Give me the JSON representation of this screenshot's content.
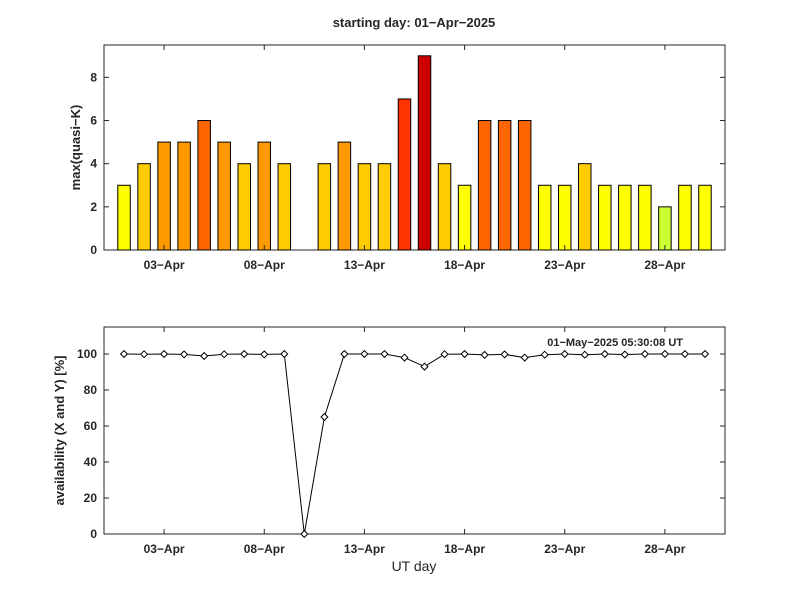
{
  "title": "starting day: 01−Apr−2025",
  "annotation": "01−May−2025 05:30:08 UT",
  "chart_data": [
    {
      "type": "bar",
      "title": "starting day: 01−Apr−2025",
      "ylabel": "max(quasi−K)",
      "xlabel": "",
      "days": [
        1,
        2,
        3,
        4,
        5,
        6,
        7,
        8,
        9,
        10,
        11,
        12,
        13,
        14,
        15,
        16,
        17,
        18,
        19,
        20,
        21,
        22,
        23,
        24,
        25,
        26,
        27,
        28,
        29,
        30
      ],
      "values": [
        3,
        4,
        5,
        5,
        6,
        5,
        4,
        5,
        4,
        null,
        4,
        5,
        4,
        4,
        7,
        9,
        4,
        3,
        6,
        6,
        6,
        3,
        3,
        4,
        3,
        3,
        3,
        2,
        3,
        3
      ],
      "xlim": [
        0,
        31
      ],
      "ylim": [
        0,
        9.5
      ],
      "yticks": [
        0,
        2,
        4,
        6,
        8
      ],
      "yticklabels": [
        "0",
        "2",
        "4",
        "6",
        "8"
      ],
      "xticks": [
        3,
        8,
        13,
        18,
        23,
        28
      ],
      "xticklabels": [
        "03−Apr",
        "08−Apr",
        "13−Apr",
        "18−Apr",
        "23−Apr",
        "28−Apr"
      ],
      "color_scale": {
        "2": "#ccff33",
        "3": "#ffff00",
        "4": "#ffcc00",
        "5": "#ff9900",
        "6": "#ff6600",
        "7": "#ff3300",
        "9": "#cc0000"
      },
      "grid": false
    },
    {
      "type": "line",
      "ylabel": "availability (X and Y) [%]",
      "xlabel": "UT day",
      "x": [
        1,
        2,
        3,
        4,
        5,
        6,
        7,
        8,
        9,
        10,
        11,
        12,
        13,
        14,
        15,
        16,
        17,
        18,
        19,
        20,
        21,
        22,
        23,
        24,
        25,
        26,
        27,
        28,
        29,
        30
      ],
      "y": [
        100,
        99.9,
        100,
        99.8,
        98.9,
        99.9,
        100,
        99.8,
        100,
        0,
        65,
        100,
        100,
        100,
        98,
        93,
        99.9,
        100,
        99.5,
        99.8,
        98,
        99.6,
        100,
        99.6,
        100,
        99.7,
        100,
        100,
        100,
        100
      ],
      "marker": "diamond",
      "xlim": [
        0,
        31
      ],
      "ylim": [
        0,
        115
      ],
      "yticks": [
        0,
        20,
        40,
        60,
        80,
        100
      ],
      "yticklabels": [
        "0",
        "20",
        "40",
        "60",
        "80",
        "100"
      ],
      "xticks": [
        3,
        8,
        13,
        18,
        23,
        28
      ],
      "xticklabels": [
        "03−Apr",
        "08−Apr",
        "13−Apr",
        "18−Apr",
        "23−Apr",
        "28−Apr"
      ],
      "grid": false
    }
  ]
}
